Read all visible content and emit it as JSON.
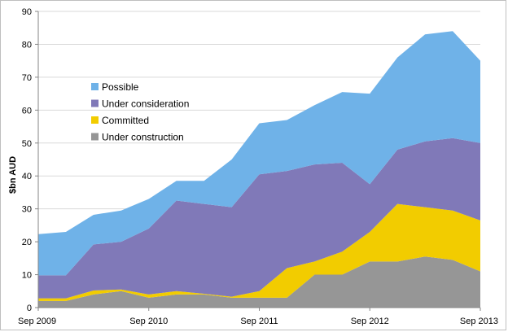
{
  "chart_data": {
    "type": "area",
    "stacked": true,
    "ylabel": "$bn AUD",
    "xlabel": "",
    "title": "",
    "ylim": [
      0,
      90
    ],
    "y_ticks": [
      0,
      10,
      20,
      30,
      40,
      50,
      60,
      70,
      80,
      90
    ],
    "x_tick_labels": [
      "Sep 2009",
      "Sep 2010",
      "Sep 2011",
      "Sep 2012",
      "Sep 2013"
    ],
    "x": [
      "Sep 2009",
      "Dec 2009",
      "Mar 2010",
      "Jun 2010",
      "Sep 2010",
      "Dec 2010",
      "Mar 2011",
      "Jun 2011",
      "Sep 2011",
      "Dec 2011",
      "Mar 2012",
      "Jun 2012",
      "Sep 2012",
      "Dec 2012",
      "Mar 2013",
      "Jun 2013",
      "Sep 2013"
    ],
    "grid": true,
    "legend_position": "left-center",
    "series": [
      {
        "name": "Under construction",
        "color": "#969696",
        "values": [
          2,
          2,
          4,
          5,
          3,
          4,
          4,
          3,
          3,
          3,
          10,
          10,
          14,
          14,
          15.5,
          14.5,
          11
        ]
      },
      {
        "name": "Committed",
        "color": "#f2cc00",
        "values": [
          0.8,
          0.8,
          1.2,
          0.5,
          1,
          1,
          0.2,
          0.3,
          2,
          9,
          4,
          7,
          9,
          17.5,
          15,
          15,
          15.5
        ]
      },
      {
        "name": "Under consideration",
        "color": "#8079b8",
        "values": [
          7,
          7,
          14,
          14.5,
          20,
          27.5,
          27.3,
          27.2,
          35.5,
          29.5,
          29.5,
          27,
          14.5,
          16.5,
          20,
          22,
          23.5
        ]
      },
      {
        "name": "Possible",
        "color": "#6fb2e8",
        "values": [
          12.5,
          13.2,
          9,
          9.5,
          9,
          6,
          7,
          14.5,
          15.5,
          15.5,
          18,
          21.5,
          27.5,
          28,
          32.5,
          32.5,
          25
        ]
      }
    ]
  }
}
